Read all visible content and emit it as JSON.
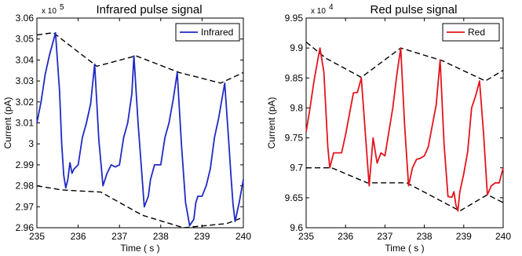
{
  "chart_data": [
    {
      "type": "line",
      "title": "Infrared pulse signal",
      "xlabel": "Time ( s )",
      "ylabel": "Current (pA)",
      "y_multiplier": "x 10",
      "y_exponent": "5",
      "xlim": [
        235,
        240
      ],
      "ylim": [
        2.96,
        3.06
      ],
      "x_ticks": [
        "235",
        "236",
        "237",
        "238",
        "239",
        "240"
      ],
      "y_ticks": [
        "2.96",
        "2.97",
        "2.98",
        "2.99",
        "3",
        "3.01",
        "3.02",
        "3.03",
        "3.04",
        "3.05",
        "3.06"
      ],
      "legend_position": "top-right",
      "series": [
        {
          "name": "Infrared",
          "color": "#1f2ac4",
          "x": [
            235.0,
            235.1,
            235.2,
            235.3,
            235.45,
            235.55,
            235.6,
            235.65,
            235.7,
            235.75,
            235.8,
            235.85,
            235.9,
            236.0,
            236.1,
            236.2,
            236.3,
            236.4,
            236.5,
            236.6,
            236.7,
            236.8,
            236.9,
            237.0,
            237.1,
            237.2,
            237.3,
            237.35,
            237.45,
            237.6,
            237.7,
            237.75,
            237.85,
            238.0,
            238.1,
            238.2,
            238.3,
            238.4,
            238.5,
            238.6,
            238.7,
            238.8,
            238.85,
            238.9,
            239.0,
            239.1,
            239.2,
            239.3,
            239.4,
            239.55,
            239.65,
            239.7,
            239.75,
            239.8,
            239.9,
            240.0
          ],
          "y": [
            3.01,
            3.02,
            3.033,
            3.042,
            3.053,
            3.025,
            3.0,
            2.985,
            2.979,
            2.983,
            2.991,
            2.986,
            2.988,
            2.99,
            3.003,
            3.01,
            3.019,
            3.038,
            3.002,
            2.98,
            2.986,
            2.99,
            2.989,
            2.99,
            3.003,
            3.01,
            3.024,
            3.042,
            3.01,
            2.97,
            2.975,
            2.983,
            2.99,
            2.99,
            3.003,
            3.01,
            3.021,
            3.034,
            3.0,
            2.972,
            2.961,
            2.964,
            2.972,
            2.975,
            2.975,
            2.98,
            2.988,
            3.003,
            3.012,
            3.029,
            3.0,
            2.985,
            2.971,
            2.963,
            2.972,
            2.983
          ]
        }
      ],
      "upper_envelope": {
        "x": [
          235.0,
          235.4,
          236.45,
          237.4,
          238.45,
          239.45,
          240.0
        ],
        "y": [
          3.052,
          3.053,
          3.037,
          3.042,
          3.034,
          3.029,
          3.034
        ]
      },
      "lower_envelope": {
        "x": [
          235.0,
          235.6,
          236.55,
          237.55,
          238.55,
          239.6,
          240.0
        ],
        "y": [
          2.98,
          2.978,
          2.977,
          2.966,
          2.96,
          2.962,
          2.965
        ]
      }
    },
    {
      "type": "line",
      "title": "Red pulse signal",
      "xlabel": "Time ( s )",
      "ylabel": "Current (pA)",
      "y_multiplier": "x 10",
      "y_exponent": "4",
      "xlim": [
        235,
        240
      ],
      "ylim": [
        9.6,
        9.95
      ],
      "x_ticks": [
        "235",
        "236",
        "237",
        "238",
        "239",
        "240"
      ],
      "y_ticks": [
        "9.6",
        "9.65",
        "9.7",
        "9.75",
        "9.8",
        "9.85",
        "9.9",
        "9.95"
      ],
      "legend_position": "top-right",
      "series": [
        {
          "name": "Red",
          "color": "#e3141c",
          "x": [
            235.0,
            235.1,
            235.2,
            235.35,
            235.45,
            235.55,
            235.6,
            235.7,
            235.8,
            235.9,
            236.0,
            236.1,
            236.2,
            236.3,
            236.4,
            236.5,
            236.6,
            236.7,
            236.8,
            236.9,
            237.0,
            237.1,
            237.2,
            237.3,
            237.4,
            237.5,
            237.6,
            237.7,
            237.8,
            237.9,
            238.0,
            238.1,
            238.2,
            238.3,
            238.4,
            238.5,
            238.6,
            238.7,
            238.75,
            238.8,
            238.85,
            238.9,
            239.0,
            239.1,
            239.2,
            239.3,
            239.4,
            239.5,
            239.6,
            239.7,
            239.8,
            239.9,
            240.0
          ],
          "y": [
            9.76,
            9.8,
            9.845,
            9.9,
            9.86,
            9.735,
            9.7,
            9.725,
            9.725,
            9.725,
            9.755,
            9.79,
            9.825,
            9.826,
            9.85,
            9.76,
            9.67,
            9.75,
            9.708,
            9.725,
            9.72,
            9.76,
            9.8,
            9.855,
            9.9,
            9.77,
            9.67,
            9.7,
            9.714,
            9.716,
            9.72,
            9.735,
            9.77,
            9.805,
            9.88,
            9.74,
            9.652,
            9.651,
            9.66,
            9.638,
            9.628,
            9.66,
            9.69,
            9.727,
            9.8,
            9.82,
            9.845,
            9.76,
            9.655,
            9.67,
            9.675,
            9.675,
            9.7
          ]
        }
      ],
      "upper_envelope": {
        "x": [
          235.0,
          235.5,
          236.4,
          237.4,
          238.45,
          239.55,
          240.0
        ],
        "y": [
          9.91,
          9.883,
          9.851,
          9.9,
          9.879,
          9.845,
          9.863
        ]
      },
      "lower_envelope": {
        "x": [
          235.0,
          235.65,
          236.55,
          237.55,
          238.9,
          239.6,
          240.0
        ],
        "y": [
          9.7,
          9.7,
          9.675,
          9.675,
          9.628,
          9.655,
          9.642
        ]
      }
    }
  ]
}
